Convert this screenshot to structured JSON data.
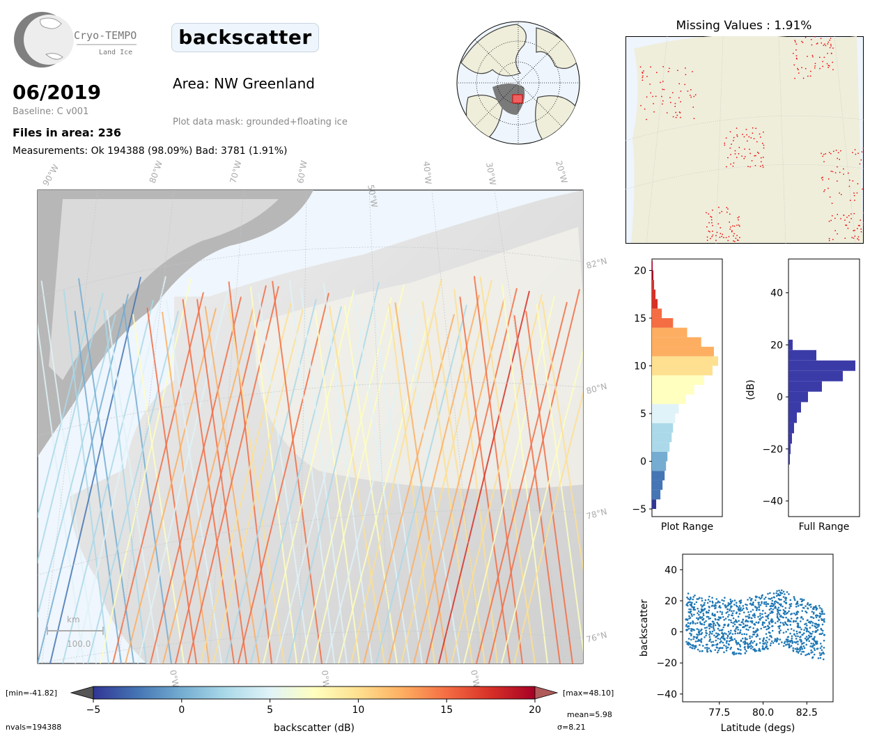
{
  "header": {
    "logo_name": "Cryo-TEMPO",
    "logo_subtitle": "Land Ice",
    "date": "06/2019",
    "baseline": "Baseline: C v001",
    "files": "Files in area: 236",
    "measurements": "Measurements: Ok 194388 (98.09%) Bad: 3781 (1.91%)",
    "parameter": "backscatter",
    "area": "Area: NW Greenland",
    "mask": "Plot data mask: grounded+floating ice"
  },
  "map": {
    "lon_labels": [
      "90°W",
      "80°W",
      "70°W",
      "60°W",
      "50°W",
      "40°W",
      "30°W",
      "20°W"
    ],
    "lat_labels": [
      "82°N",
      "80°N",
      "78°N",
      "76°N"
    ],
    "bottom_labels": [
      "0°W",
      "0°W",
      "0°W"
    ],
    "scale_unit": "km",
    "scale_value": "100.0"
  },
  "missing": {
    "title": "Missing Values : 1.91%"
  },
  "colorbar": {
    "min_label": "[min=-41.82]",
    "max_label": "[max=48.10]",
    "ticks": [
      "−5",
      "0",
      "5",
      "10",
      "15",
      "20"
    ],
    "label": "backscatter (dB)",
    "nvals": "nvals=194388",
    "mean": "mean=5.98",
    "sigma": "σ=8.21",
    "colors": [
      "#313695",
      "#4575b4",
      "#74add1",
      "#abd9e9",
      "#e0f3f8",
      "#ffffbf",
      "#fee090",
      "#fdae61",
      "#f46d43",
      "#d73027",
      "#a50026"
    ]
  },
  "chart_data": [
    {
      "type": "bar",
      "orientation": "horizontal",
      "xlabel": "Plot Range",
      "ylim": [
        -5.8,
        21.2
      ],
      "yticks": [
        20,
        15,
        10,
        5,
        0,
        -5
      ],
      "bins": [
        -5,
        -4,
        -3,
        -2,
        -1,
        0,
        1,
        2,
        3,
        4,
        5,
        6,
        7,
        8,
        9,
        10,
        11,
        12,
        13,
        14,
        15,
        16,
        17,
        18,
        19,
        20
      ],
      "counts": [
        6,
        12,
        15,
        18,
        20,
        22,
        25,
        28,
        30,
        33,
        38,
        48,
        60,
        74,
        86,
        94,
        88,
        70,
        50,
        30,
        14,
        8,
        5,
        3,
        2,
        1
      ]
    },
    {
      "type": "bar",
      "orientation": "horizontal",
      "xlabel": "Full Range",
      "ylabel": "(dB)",
      "ylim": [
        -46,
        53
      ],
      "yticks": [
        40,
        20,
        0,
        -20,
        -40
      ],
      "bins": [
        -26,
        -22,
        -18,
        -14,
        -10,
        -6,
        -2,
        2,
        6,
        10,
        14,
        18
      ],
      "counts": [
        2,
        3,
        5,
        8,
        12,
        18,
        28,
        48,
        78,
        96,
        40,
        6
      ],
      "color": "#3b3ba8"
    },
    {
      "type": "scatter",
      "xlabel": "Latitude (degs)",
      "ylabel": "backscatter",
      "xlim": [
        75.4,
        84.0
      ],
      "ylim": [
        -45,
        50
      ],
      "xticks": [
        "77.5",
        "80.0",
        "82.5"
      ],
      "yticks": [
        "40",
        "20",
        "0",
        "−20",
        "−40"
      ],
      "series": [
        {
          "x": [
            75.6,
            76.0,
            76.5,
            77.0,
            77.5,
            78.0,
            78.5,
            79.0,
            79.5,
            80.0,
            80.5,
            81.0,
            81.5,
            82.0,
            82.5,
            83.0,
            83.5
          ],
          "y": [
            8,
            6,
            5,
            5,
            4,
            4,
            3,
            4,
            5,
            6,
            8,
            10,
            7,
            4,
            2,
            0,
            -2
          ]
        }
      ],
      "color": "#1f77b4"
    }
  ]
}
